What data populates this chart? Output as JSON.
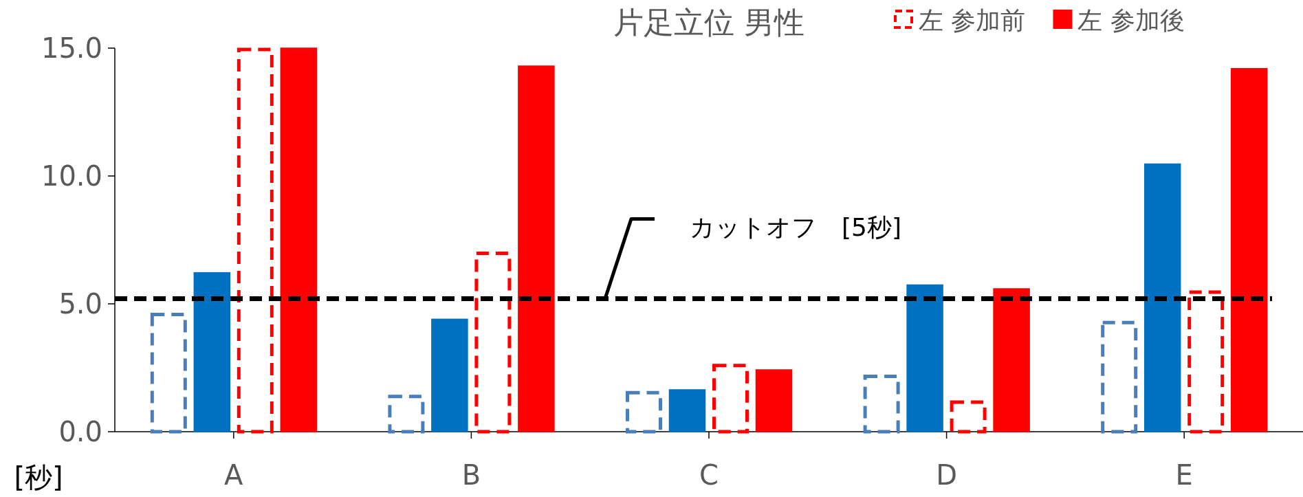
{
  "chart_data": {
    "type": "bar",
    "title": "片足立位 男性",
    "ylabel": "[秒]",
    "categories": [
      "A",
      "B",
      "C",
      "D",
      "E"
    ],
    "series": [
      {
        "color": "#4a7ebb",
        "line_style": "dashed",
        "values": [
          4.64,
          1.43,
          1.58,
          2.22,
          4.32
        ]
      },
      {
        "color": "#0070c0",
        "values": [
          6.22,
          4.4,
          1.64,
          5.74,
          10.47
        ]
      },
      {
        "name": "左 参加前",
        "color": "#ff0000",
        "line_style": "dashed",
        "values": [
          15.0,
          7.03,
          2.64,
          1.21,
          5.51
        ]
      },
      {
        "name": "左 参加後",
        "color": "#ff0000",
        "values": [
          15.0,
          14.3,
          2.42,
          5.59,
          14.2
        ]
      }
    ],
    "ylim": [
      0,
      15
    ],
    "yticks": [
      {
        "value": 0,
        "label": "0.0"
      },
      {
        "value": 5,
        "label": "5.0"
      },
      {
        "value": 10,
        "label": "10.0"
      },
      {
        "value": 15,
        "label": "15.0"
      }
    ],
    "ref_lines": [
      {
        "axis": "y",
        "value": 5.2,
        "label": "カットオフ　[5秒]",
        "color": "#000000",
        "line_style": "dashed"
      }
    ],
    "legend": "top right"
  }
}
